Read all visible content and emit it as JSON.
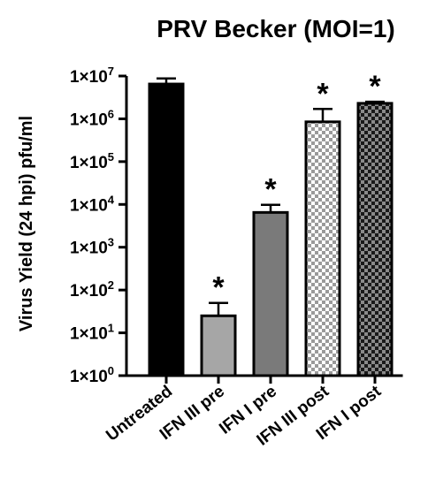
{
  "chart_data": {
    "type": "bar",
    "title": "PRV Becker (MOI=1)",
    "xlabel": "",
    "ylabel": "Virus Yield (24 hpi) pfu/ml",
    "y_scale": "log",
    "ylim": [
      1,
      10000000
    ],
    "y_ticks": [
      {
        "value": 1,
        "base": "1×10",
        "exp": "0"
      },
      {
        "value": 10,
        "base": "1×10",
        "exp": "1"
      },
      {
        "value": 100,
        "base": "1×10",
        "exp": "2"
      },
      {
        "value": 1000,
        "base": "1×10",
        "exp": "3"
      },
      {
        "value": 10000,
        "base": "1×10",
        "exp": "4"
      },
      {
        "value": 100000,
        "base": "1×10",
        "exp": "5"
      },
      {
        "value": 1000000,
        "base": "1×10",
        "exp": "6"
      },
      {
        "value": 10000000,
        "base": "1×10",
        "exp": "7"
      }
    ],
    "categories": [
      "Untreated",
      "IFN III pre",
      "IFN I pre",
      "IFN III post",
      "IFN I post"
    ],
    "values": [
      6500000,
      25,
      6500,
      850000,
      2300000
    ],
    "error_upper": [
      8800000,
      50,
      9800,
      1700000,
      2500000
    ],
    "significance": [
      "",
      "*",
      "*",
      "*",
      "*"
    ],
    "fill_patterns": [
      "solid-black",
      "solid-lightgray",
      "solid-gray",
      "checker-light",
      "checker-dark"
    ],
    "colors": {
      "black": "#000000",
      "light_gray": "#a6a6a6",
      "gray": "#7a7a7a",
      "checker_light": "#d6d6d6",
      "checker_dark": "#5a5a5a"
    },
    "grid": false,
    "legend": "none"
  }
}
